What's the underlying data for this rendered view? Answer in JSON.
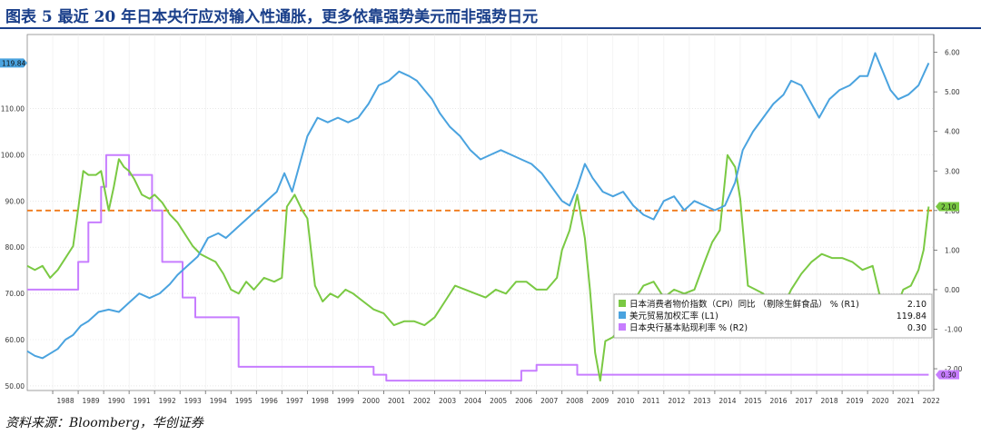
{
  "header": {
    "title": "图表 5  最近 20 年日本央行应对输入性通胀，更多依靠强势美元而非强势日元"
  },
  "footer": {
    "source": "资料来源：Bloomberg，华创证券"
  },
  "colors": {
    "cpi": "#7ac943",
    "usd": "#4aa3df",
    "rate": "#c77dff",
    "ref_line": "#f07a1a",
    "title": "#1a3f8a"
  },
  "chart_data": {
    "type": "line",
    "x_tick_labels": [
      "1988",
      "1989",
      "1990",
      "1991",
      "1992",
      "1993",
      "1994",
      "1995",
      "1996",
      "1997",
      "1998",
      "1999",
      "2000",
      "2001",
      "2002",
      "2003",
      "2004",
      "2005",
      "2006",
      "2007",
      "2008",
      "2009",
      "2010",
      "2011",
      "2012",
      "2013",
      "2014",
      "2015",
      "2016",
      "2017",
      "2018",
      "2019",
      "2020",
      "2021",
      "2022"
    ],
    "xlim": [
      1987.0,
      2022.6
    ],
    "left_axis": {
      "ylim": [
        49,
        126
      ],
      "ticks": [
        50,
        60,
        70,
        80,
        90,
        100,
        110
      ],
      "tick_labels": [
        "50.00",
        "60.00",
        "70.00",
        "80.00",
        "90.00",
        "100.00",
        "110.00"
      ]
    },
    "right_axis": {
      "ylim": [
        -2.55,
        6.45
      ],
      "ticks": [
        -2,
        -1,
        0,
        1,
        2,
        3,
        4,
        5,
        6
      ],
      "tick_labels": [
        "-2.00",
        "-1.00",
        "0.00",
        "1.00",
        "2.00",
        "3.00",
        "4.00",
        "5.00",
        "6.00"
      ]
    },
    "reference_line": {
      "axis": "right",
      "value": 2.0
    },
    "legend": {
      "position": "bottom-right",
      "entries": [
        {
          "label": "日本消费者物价指数（CPI）同比 （剔除生鲜食品） % (R1)",
          "value": "2.10"
        },
        {
          "label": "美元贸易加权汇率 (L1)",
          "value": "119.84"
        },
        {
          "label": "日本央行基本贴现利率 % (R2)",
          "value": "0.30"
        }
      ]
    },
    "last_value_tags": {
      "usd": "119.84",
      "cpi": "2.10",
      "rate": "0.30"
    },
    "series": [
      {
        "key": "cpi",
        "axis": "right",
        "points": [
          [
            1987.0,
            0.6
          ],
          [
            1987.3,
            0.5
          ],
          [
            1987.6,
            0.6
          ],
          [
            1987.9,
            0.3
          ],
          [
            1988.2,
            0.5
          ],
          [
            1988.5,
            0.8
          ],
          [
            1988.8,
            1.1
          ],
          [
            1988.95,
            1.8
          ],
          [
            1989.2,
            3.0
          ],
          [
            1989.4,
            2.9
          ],
          [
            1989.7,
            2.9
          ],
          [
            1989.9,
            3.0
          ],
          [
            1990.2,
            2.0
          ],
          [
            1990.4,
            2.6
          ],
          [
            1990.6,
            3.3
          ],
          [
            1990.8,
            3.1
          ],
          [
            1991.0,
            3.0
          ],
          [
            1991.2,
            2.8
          ],
          [
            1991.5,
            2.4
          ],
          [
            1991.8,
            2.3
          ],
          [
            1992.0,
            2.4
          ],
          [
            1992.3,
            2.2
          ],
          [
            1992.6,
            1.9
          ],
          [
            1992.9,
            1.7
          ],
          [
            1993.2,
            1.4
          ],
          [
            1993.5,
            1.1
          ],
          [
            1993.8,
            0.9
          ],
          [
            1994.1,
            0.8
          ],
          [
            1994.4,
            0.7
          ],
          [
            1994.7,
            0.4
          ],
          [
            1995.0,
            0.0
          ],
          [
            1995.3,
            -0.1
          ],
          [
            1995.6,
            0.2
          ],
          [
            1995.9,
            0.0
          ],
          [
            1996.3,
            0.3
          ],
          [
            1996.7,
            0.2
          ],
          [
            1997.0,
            0.3
          ],
          [
            1997.2,
            2.1
          ],
          [
            1997.5,
            2.4
          ],
          [
            1997.8,
            2.0
          ],
          [
            1998.0,
            1.8
          ],
          [
            1998.3,
            0.1
          ],
          [
            1998.6,
            -0.3
          ],
          [
            1998.9,
            -0.1
          ],
          [
            1999.2,
            -0.2
          ],
          [
            1999.5,
            0.0
          ],
          [
            1999.8,
            -0.1
          ],
          [
            2000.2,
            -0.3
          ],
          [
            2000.6,
            -0.5
          ],
          [
            2001.0,
            -0.6
          ],
          [
            2001.4,
            -0.9
          ],
          [
            2001.8,
            -0.8
          ],
          [
            2002.2,
            -0.8
          ],
          [
            2002.6,
            -0.9
          ],
          [
            2003.0,
            -0.7
          ],
          [
            2003.4,
            -0.3
          ],
          [
            2003.8,
            0.1
          ],
          [
            2004.2,
            0.0
          ],
          [
            2004.6,
            -0.1
          ],
          [
            2005.0,
            -0.2
          ],
          [
            2005.4,
            0.0
          ],
          [
            2005.8,
            -0.1
          ],
          [
            2006.2,
            0.2
          ],
          [
            2006.6,
            0.2
          ],
          [
            2007.0,
            0.0
          ],
          [
            2007.4,
            0.0
          ],
          [
            2007.8,
            0.3
          ],
          [
            2008.0,
            1.0
          ],
          [
            2008.3,
            1.5
          ],
          [
            2008.6,
            2.4
          ],
          [
            2008.9,
            1.3
          ],
          [
            2009.1,
            0.0
          ],
          [
            2009.3,
            -1.6
          ],
          [
            2009.5,
            -2.3
          ],
          [
            2009.7,
            -1.3
          ],
          [
            2010.0,
            -1.2
          ],
          [
            2010.4,
            -0.9
          ],
          [
            2010.8,
            -0.3
          ],
          [
            2011.2,
            0.1
          ],
          [
            2011.6,
            0.2
          ],
          [
            2012.0,
            -0.2
          ],
          [
            2012.4,
            0.0
          ],
          [
            2012.8,
            -0.1
          ],
          [
            2013.2,
            0.0
          ],
          [
            2013.6,
            0.7
          ],
          [
            2013.9,
            1.2
          ],
          [
            2014.2,
            1.5
          ],
          [
            2014.5,
            3.4
          ],
          [
            2014.8,
            3.1
          ],
          [
            2015.0,
            2.3
          ],
          [
            2015.3,
            0.1
          ],
          [
            2015.6,
            0.0
          ],
          [
            2015.9,
            -0.1
          ],
          [
            2016.3,
            -0.4
          ],
          [
            2016.7,
            -0.4
          ],
          [
            2017.0,
            0.0
          ],
          [
            2017.4,
            0.4
          ],
          [
            2017.8,
            0.7
          ],
          [
            2018.2,
            0.9
          ],
          [
            2018.6,
            0.8
          ],
          [
            2019.0,
            0.8
          ],
          [
            2019.4,
            0.7
          ],
          [
            2019.8,
            0.5
          ],
          [
            2020.2,
            0.6
          ],
          [
            2020.5,
            -0.2
          ],
          [
            2020.8,
            -0.8
          ],
          [
            2021.1,
            -0.5
          ],
          [
            2021.4,
            0.0
          ],
          [
            2021.7,
            0.1
          ],
          [
            2022.0,
            0.5
          ],
          [
            2022.2,
            1.0
          ],
          [
            2022.4,
            2.1
          ]
        ]
      },
      {
        "key": "usd",
        "axis": "left",
        "points": [
          [
            1987.0,
            57.5
          ],
          [
            1987.3,
            56.5
          ],
          [
            1987.6,
            56.0
          ],
          [
            1987.9,
            57.0
          ],
          [
            1988.2,
            58.0
          ],
          [
            1988.5,
            60.0
          ],
          [
            1988.8,
            61.0
          ],
          [
            1989.1,
            63.0
          ],
          [
            1989.4,
            64.0
          ],
          [
            1989.8,
            66.0
          ],
          [
            1990.2,
            66.5
          ],
          [
            1990.6,
            66.0
          ],
          [
            1991.0,
            68.0
          ],
          [
            1991.4,
            70.0
          ],
          [
            1991.8,
            69.0
          ],
          [
            1992.2,
            70.0
          ],
          [
            1992.6,
            72.0
          ],
          [
            1992.9,
            74.0
          ],
          [
            1993.3,
            76.0
          ],
          [
            1993.7,
            78.0
          ],
          [
            1994.1,
            82.0
          ],
          [
            1994.5,
            83.0
          ],
          [
            1994.8,
            82.0
          ],
          [
            1995.2,
            84.0
          ],
          [
            1995.6,
            86.0
          ],
          [
            1996.0,
            88.0
          ],
          [
            1996.4,
            90.0
          ],
          [
            1996.8,
            92.0
          ],
          [
            1997.1,
            96.0
          ],
          [
            1997.4,
            92.0
          ],
          [
            1997.7,
            98.0
          ],
          [
            1998.0,
            104.0
          ],
          [
            1998.4,
            108.0
          ],
          [
            1998.8,
            107.0
          ],
          [
            1999.2,
            108.0
          ],
          [
            1999.6,
            107.0
          ],
          [
            2000.0,
            108.0
          ],
          [
            2000.4,
            111.0
          ],
          [
            2000.8,
            115.0
          ],
          [
            2001.2,
            116.0
          ],
          [
            2001.6,
            118.0
          ],
          [
            2002.0,
            117.0
          ],
          [
            2002.3,
            116.0
          ],
          [
            2002.6,
            114.0
          ],
          [
            2002.9,
            112.0
          ],
          [
            2003.2,
            109.0
          ],
          [
            2003.6,
            106.0
          ],
          [
            2004.0,
            104.0
          ],
          [
            2004.4,
            101.0
          ],
          [
            2004.8,
            99.0
          ],
          [
            2005.2,
            100.0
          ],
          [
            2005.6,
            101.0
          ],
          [
            2006.0,
            100.0
          ],
          [
            2006.4,
            99.0
          ],
          [
            2006.8,
            98.0
          ],
          [
            2007.2,
            96.0
          ],
          [
            2007.6,
            93.0
          ],
          [
            2008.0,
            90.0
          ],
          [
            2008.3,
            89.0
          ],
          [
            2008.6,
            93.0
          ],
          [
            2008.9,
            98.0
          ],
          [
            2009.2,
            95.0
          ],
          [
            2009.6,
            92.0
          ],
          [
            2010.0,
            91.0
          ],
          [
            2010.4,
            92.0
          ],
          [
            2010.8,
            89.0
          ],
          [
            2011.2,
            87.0
          ],
          [
            2011.6,
            86.0
          ],
          [
            2012.0,
            90.0
          ],
          [
            2012.4,
            91.0
          ],
          [
            2012.8,
            88.0
          ],
          [
            2013.2,
            90.0
          ],
          [
            2013.6,
            89.0
          ],
          [
            2014.0,
            88.0
          ],
          [
            2014.4,
            89.0
          ],
          [
            2014.8,
            94.0
          ],
          [
            2015.1,
            101.0
          ],
          [
            2015.5,
            105.0
          ],
          [
            2015.9,
            108.0
          ],
          [
            2016.3,
            111.0
          ],
          [
            2016.7,
            113.0
          ],
          [
            2017.0,
            116.0
          ],
          [
            2017.4,
            115.0
          ],
          [
            2017.8,
            111.0
          ],
          [
            2018.1,
            108.0
          ],
          [
            2018.5,
            112.0
          ],
          [
            2018.9,
            114.0
          ],
          [
            2019.3,
            115.0
          ],
          [
            2019.7,
            117.0
          ],
          [
            2020.0,
            117.0
          ],
          [
            2020.3,
            122.0
          ],
          [
            2020.6,
            118.0
          ],
          [
            2020.9,
            114.0
          ],
          [
            2021.2,
            112.0
          ],
          [
            2021.6,
            113.0
          ],
          [
            2022.0,
            115.0
          ],
          [
            2022.4,
            119.84
          ]
        ]
      },
      {
        "key": "rate",
        "axis": "right",
        "points": [
          [
            1987.0,
            0.0
          ],
          [
            1989.0,
            0.0
          ],
          [
            1989.0,
            0.7
          ],
          [
            1989.4,
            0.7
          ],
          [
            1989.4,
            1.7
          ],
          [
            1989.9,
            1.7
          ],
          [
            1989.9,
            2.6
          ],
          [
            1990.1,
            2.6
          ],
          [
            1990.1,
            3.4
          ],
          [
            1991.0,
            3.4
          ],
          [
            1991.0,
            2.9
          ],
          [
            1991.9,
            2.9
          ],
          [
            1991.9,
            2.0
          ],
          [
            1992.3,
            2.0
          ],
          [
            1992.3,
            0.7
          ],
          [
            1993.1,
            0.7
          ],
          [
            1993.1,
            -0.2
          ],
          [
            1993.6,
            -0.2
          ],
          [
            1993.6,
            -0.7
          ],
          [
            1995.3,
            -0.7
          ],
          [
            1995.3,
            -1.95
          ],
          [
            2000.6,
            -1.95
          ],
          [
            2000.6,
            -2.15
          ],
          [
            2001.1,
            -2.15
          ],
          [
            2001.1,
            -2.3
          ],
          [
            2006.4,
            -2.3
          ],
          [
            2006.4,
            -2.05
          ],
          [
            2007.0,
            -2.05
          ],
          [
            2007.0,
            -1.9
          ],
          [
            2008.6,
            -1.9
          ],
          [
            2008.6,
            -2.15
          ],
          [
            2022.4,
            -2.15
          ]
        ]
      }
    ]
  }
}
